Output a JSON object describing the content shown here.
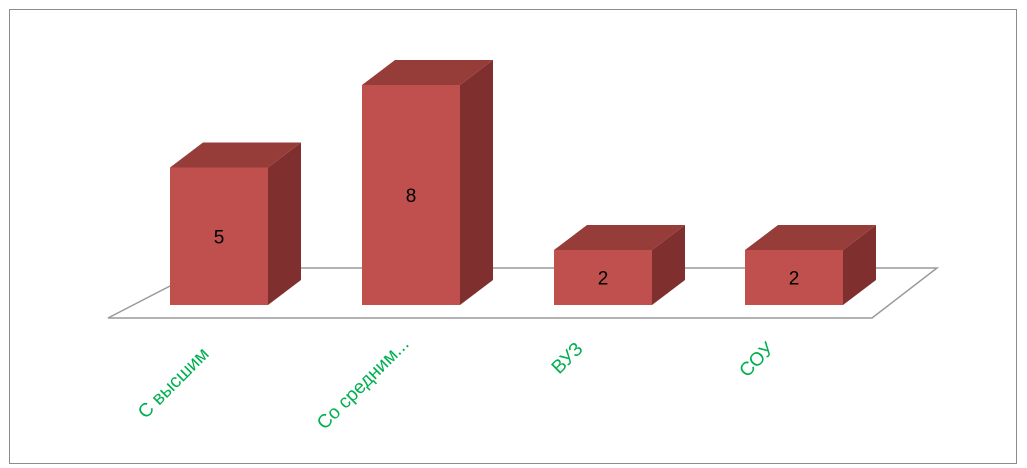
{
  "chart_data": {
    "type": "bar",
    "style": "3d-column",
    "categories": [
      "С высшим",
      "Со средним...",
      "ВУЗ",
      "СОУ"
    ],
    "values": [
      5,
      8,
      2,
      2
    ],
    "data_labels": [
      "5",
      "8",
      "2",
      "2"
    ],
    "title": "",
    "xlabel": "",
    "ylabel": "",
    "ylim": [
      0,
      8
    ],
    "grid": false,
    "legend": "none",
    "colors": {
      "bar_front": "#c0504d",
      "bar_top": "#963d3a",
      "bar_side": "#7f302e",
      "floor_line": "#9a9a9a",
      "frame": "#8c8c8c",
      "category_text": "#00b050"
    }
  }
}
